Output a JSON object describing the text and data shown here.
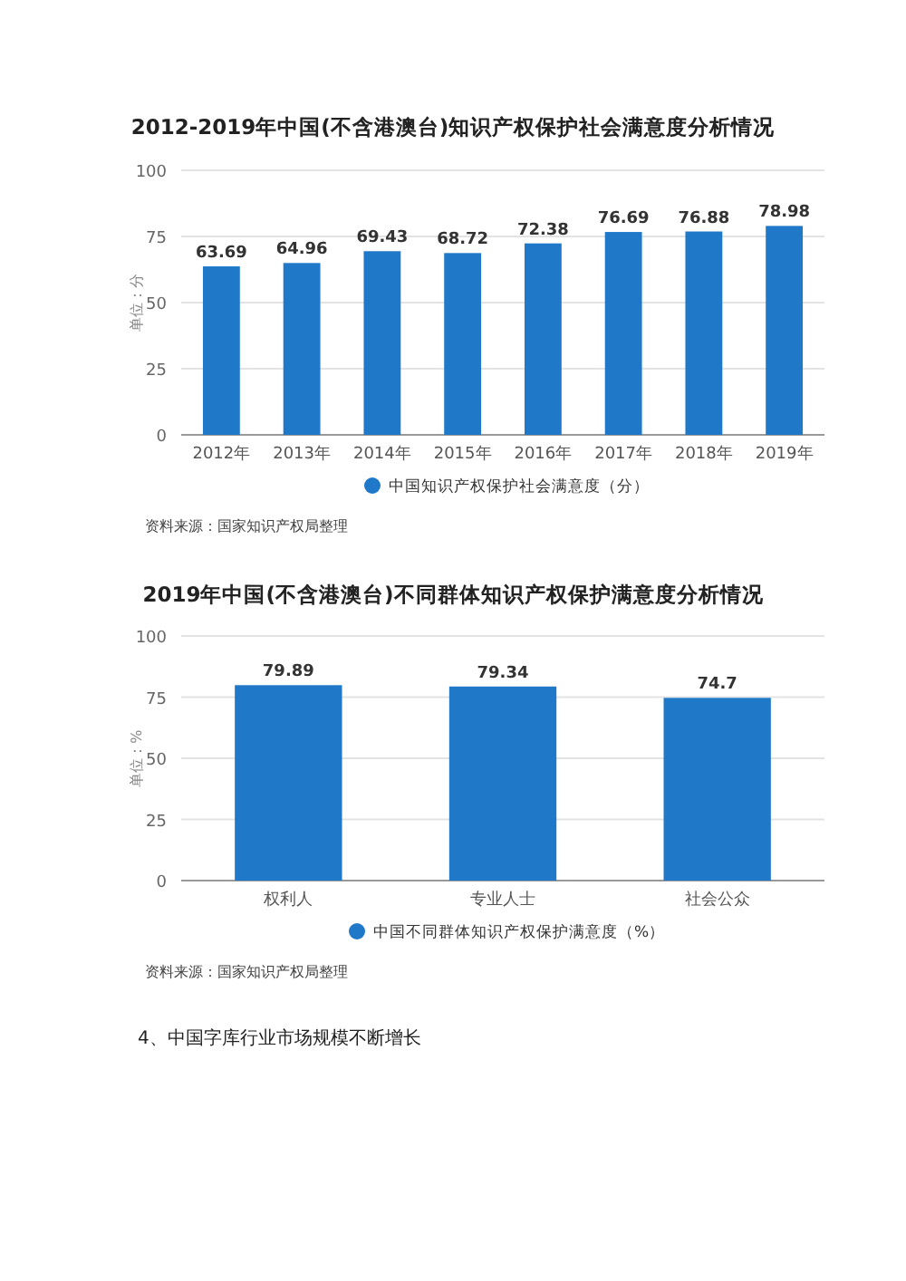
{
  "chart_data": [
    {
      "type": "bar",
      "title": "2012-2019年中国(不含港澳台)知识产权保护社会满意度分析情况",
      "ylabel": "单位：分",
      "categories": [
        "2012年",
        "2013年",
        "2014年",
        "2015年",
        "2016年",
        "2017年",
        "2018年",
        "2019年"
      ],
      "series": [
        {
          "name": "中国知识产权保护社会满意度（分）",
          "color": "#1f78c8",
          "values": [
            63.69,
            64.96,
            69.43,
            68.72,
            72.38,
            76.69,
            76.88,
            78.98
          ]
        }
      ],
      "ylim": [
        0,
        100
      ],
      "yticks": [
        0,
        25,
        50,
        75,
        100
      ],
      "grid": "y",
      "legend": "bottom",
      "data_labels": true,
      "annotations": [
        "资料来源：国家知识产权局整理"
      ]
    },
    {
      "type": "bar",
      "title": "2019年中国(不含港澳台)不同群体知识产权保护满意度分析情况",
      "ylabel": "单位：%",
      "categories": [
        "权利人",
        "专业人士",
        "社会公众"
      ],
      "series": [
        {
          "name": "中国不同群体知识产权保护满意度（%）",
          "color": "#1f78c8",
          "values": [
            79.89,
            79.34,
            74.7
          ]
        }
      ],
      "ylim": [
        0,
        100
      ],
      "yticks": [
        0,
        25,
        50,
        75,
        100
      ],
      "grid": "y",
      "legend": "bottom",
      "data_labels": true,
      "annotations": [
        "资料来源：国家知识产权局整理",
        "4、中国字库行业市场规模不断增长"
      ]
    }
  ]
}
